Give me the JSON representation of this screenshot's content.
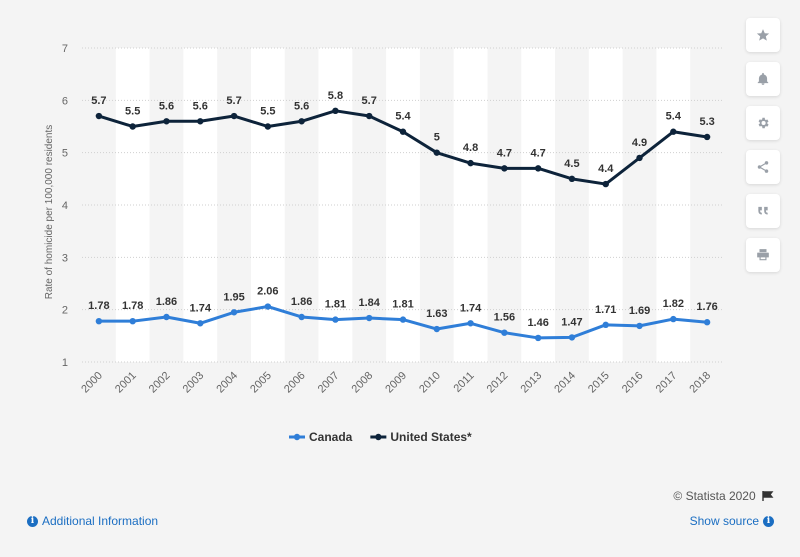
{
  "chart_data": {
    "type": "line",
    "categories": [
      "2000",
      "2001",
      "2002",
      "2003",
      "2004",
      "2005",
      "2006",
      "2007",
      "2008",
      "2009",
      "2010",
      "2011",
      "2012",
      "2013",
      "2014",
      "2015",
      "2016",
      "2017",
      "2018"
    ],
    "series": [
      {
        "name": "Canada",
        "color": "#2f7ed8",
        "values": [
          1.78,
          1.78,
          1.86,
          1.74,
          1.95,
          2.06,
          1.86,
          1.81,
          1.84,
          1.81,
          1.63,
          1.74,
          1.56,
          1.46,
          1.47,
          1.71,
          1.69,
          1.82,
          1.76
        ],
        "labels": [
          "1.78",
          "1.78",
          "1.86",
          "1.74",
          "1.95",
          "2.06",
          "1.86",
          "1.81",
          "1.84",
          "1.81",
          "1.63",
          "1.74",
          "1.56",
          "1.46",
          "1.47",
          "1.71",
          "1.69",
          "1.82",
          "1.76"
        ]
      },
      {
        "name": "United States*",
        "color": "#0d233a",
        "values": [
          5.7,
          5.5,
          5.6,
          5.6,
          5.7,
          5.5,
          5.6,
          5.8,
          5.7,
          5.4,
          5,
          4.8,
          4.7,
          4.7,
          4.5,
          4.4,
          4.9,
          5.4,
          5.3
        ],
        "labels": [
          "5.7",
          "5.5",
          "5.6",
          "5.6",
          "5.7",
          "5.5",
          "5.6",
          "5.8",
          "5.7",
          "5.4",
          "5",
          "4.8",
          "4.7",
          "4.7",
          "4.5",
          "4.4",
          "4.9",
          "5.4",
          "5.3"
        ]
      }
    ],
    "ylabel": "Rate of homicide per 100,000 residents",
    "ylim": [
      1,
      7
    ],
    "yticks": [
      1,
      2,
      3,
      4,
      5,
      6,
      7
    ],
    "grid": "dotted-horizontal",
    "legend_position": "bottom-center"
  },
  "sidebar": {
    "buttons": [
      {
        "icon": "star-icon"
      },
      {
        "icon": "bell-icon"
      },
      {
        "icon": "gear-icon"
      },
      {
        "icon": "share-icon"
      },
      {
        "icon": "quote-icon"
      },
      {
        "icon": "print-icon"
      }
    ]
  },
  "footer": {
    "credit": "© Statista 2020",
    "additional_info": "Additional Information",
    "show_source": "Show source"
  }
}
